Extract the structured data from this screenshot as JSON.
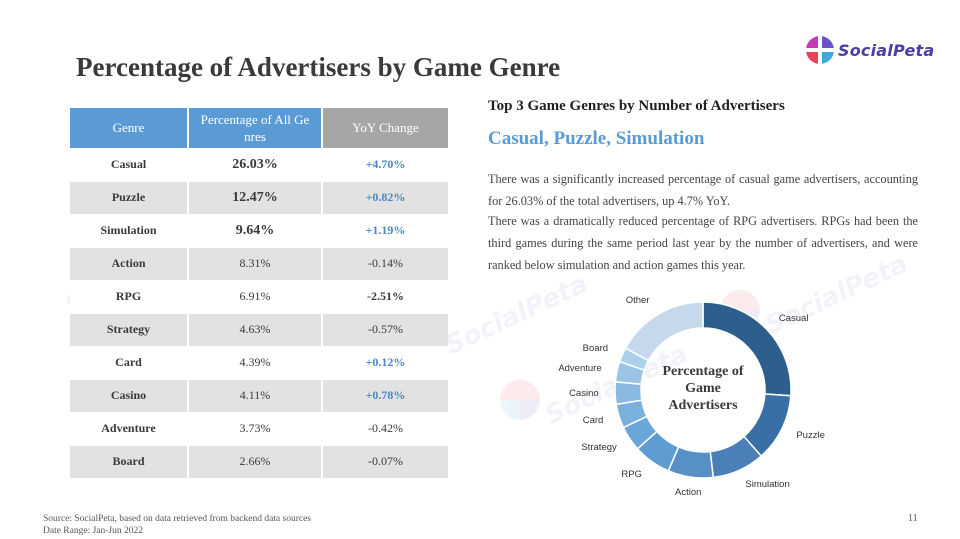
{
  "title": "Percentage of Advertisers by Game Genre",
  "logo": {
    "text": "SocialPeta"
  },
  "watermark": {
    "text": "SocialPeta"
  },
  "table": {
    "headers": [
      "Genre",
      "Percentage of All Ge nres",
      "YoY Change"
    ],
    "rows": [
      {
        "genre": "Casual",
        "pct": "26.03%",
        "yoy": "+4.70%"
      },
      {
        "genre": "Puzzle",
        "pct": "12.47%",
        "yoy": "+0.82%"
      },
      {
        "genre": "Simulation",
        "pct": "9.64%",
        "yoy": "+1.19%"
      },
      {
        "genre": "Action",
        "pct": "8.31%",
        "yoy": "-0.14%"
      },
      {
        "genre": "RPG",
        "pct": "6.91%",
        "yoy": "-2.51%"
      },
      {
        "genre": "Strategy",
        "pct": "4.63%",
        "yoy": "-0.57%"
      },
      {
        "genre": "Card",
        "pct": "4.39%",
        "yoy": "+0.12%"
      },
      {
        "genre": "Casino",
        "pct": "4.11%",
        "yoy": "+0.78%"
      },
      {
        "genre": "Adventure",
        "pct": "3.73%",
        "yoy": "-0.42%"
      },
      {
        "genre": "Board",
        "pct": "2.66%",
        "yoy": "-0.07%"
      }
    ]
  },
  "right": {
    "subhead": "Top 3 Game Genres by Number of Advertisers",
    "highlight": "Casual, Puzzle, Simulation",
    "para1": "There was a significantly increased percentage of casual game advertisers, accounting for 26.03% of the total advertisers, up 4.7% YoY.",
    "para2": "There was a dramatically reduced percentage of RPG advertisers. RPGs had been the third games during the same period last year by the number of advertisers, and were ranked below simulation and action games this year."
  },
  "chart_data": {
    "type": "pie",
    "title": "Percentage of Game Advertisers",
    "categories": [
      "Casual",
      "Puzzle",
      "Simulation",
      "Action",
      "RPG",
      "Strategy",
      "Card",
      "Casino",
      "Adventure",
      "Board",
      "Other"
    ],
    "values": [
      26.03,
      12.47,
      9.64,
      8.31,
      6.91,
      4.63,
      4.39,
      4.11,
      3.73,
      2.66,
      17.12
    ],
    "colors": [
      "#2e5e8c",
      "#3a6fa5",
      "#4a7fb8",
      "#5690c7",
      "#5f9cd2",
      "#6ba6d8",
      "#7ab0dd",
      "#8abae2",
      "#9bc5e7",
      "#accfeb",
      "#c5d8ec"
    ]
  },
  "footer": {
    "source": "Source: SocialPeta, based on data retrieved from backend data sources",
    "range": "Date Range: Jan-Jun 2022",
    "page": "11"
  }
}
